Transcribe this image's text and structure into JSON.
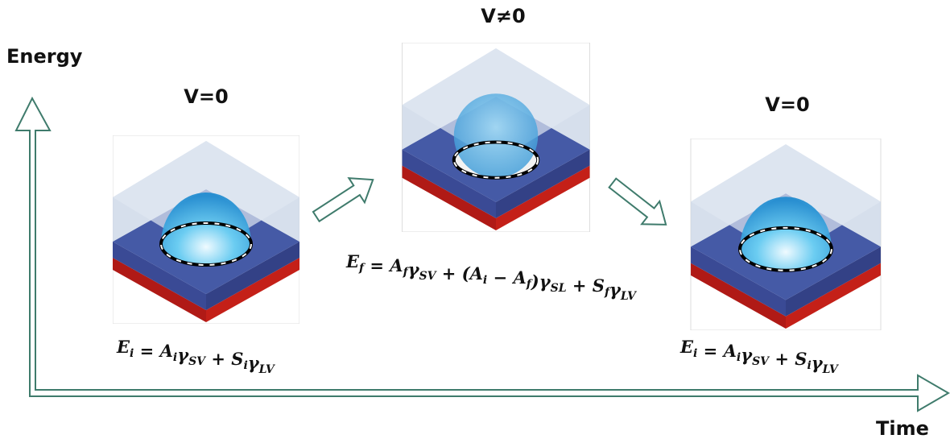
{
  "axes": {
    "y_label": "Energy",
    "x_label": "Time"
  },
  "states": [
    {
      "label": "V=0",
      "equation": [
        {
          "text": "E",
          "sub": "i"
        },
        {
          "text": " = "
        },
        {
          "text": "A",
          "sub": "i"
        },
        {
          "text": "γ",
          "sub": "SV"
        },
        {
          "text": " + "
        },
        {
          "text": "S",
          "sub": "i"
        },
        {
          "text": "γ",
          "sub": "LV"
        }
      ]
    },
    {
      "label": "V≠0",
      "equation": [
        {
          "text": "E",
          "sub": "f"
        },
        {
          "text": " = "
        },
        {
          "text": "A",
          "sub": "f"
        },
        {
          "text": "γ",
          "sub": "SV"
        },
        {
          "text": " + ("
        },
        {
          "text": "A",
          "sub": "i"
        },
        {
          "text": " − "
        },
        {
          "text": "A",
          "sub": "f"
        },
        {
          "text": ")"
        },
        {
          "text": "γ",
          "sub": "SL"
        },
        {
          "text": " + "
        },
        {
          "text": "S",
          "sub": "f"
        },
        {
          "text": "γ",
          "sub": "LV"
        }
      ]
    },
    {
      "label": "V=0",
      "equation": [
        {
          "text": "E",
          "sub": "i"
        },
        {
          "text": " = "
        },
        {
          "text": "A",
          "sub": "i"
        },
        {
          "text": "γ",
          "sub": "SV"
        },
        {
          "text": " + "
        },
        {
          "text": "S",
          "sub": "i"
        },
        {
          "text": "γ",
          "sub": "LV"
        }
      ]
    }
  ]
}
